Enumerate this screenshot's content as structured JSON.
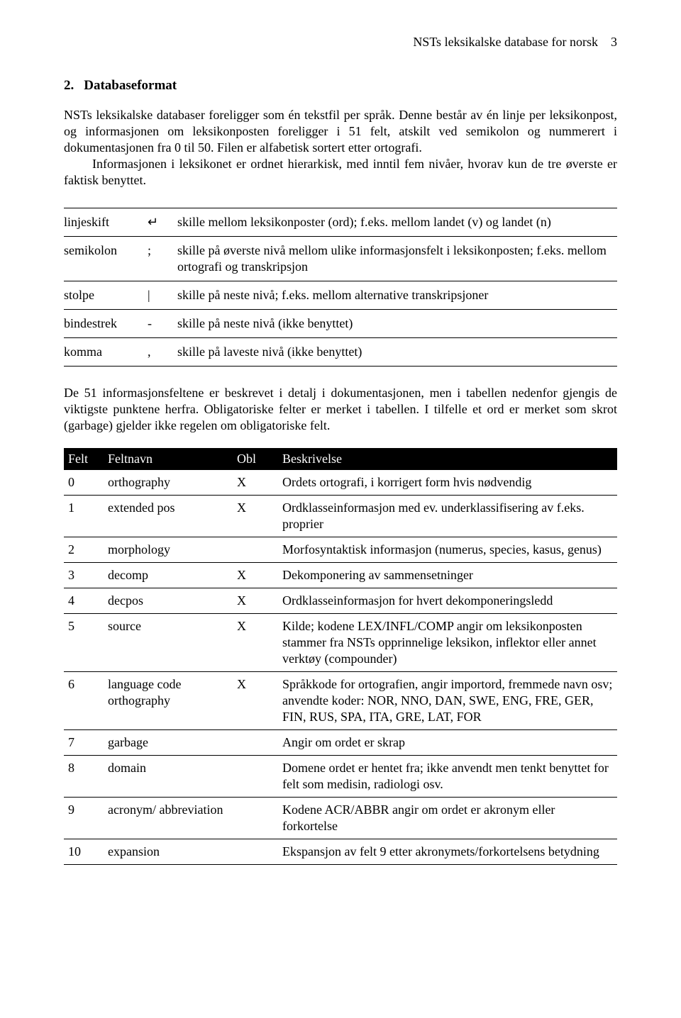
{
  "header": {
    "running": "NSTs leksikalske database for norsk",
    "page": "3"
  },
  "section": {
    "number": "2.",
    "title": "Databaseformat"
  },
  "paragraphs": {
    "p1": "NSTs leksikalske databaser foreligger som én tekstfil per språk. Denne består av én linje per leksikonpost, og informasjonen om leksikonposten foreligger i 51 felt, atskilt ved semikolon og nummerert i dokumentasjonen fra 0 til 50. Filen er alfabetisk sortert etter ortografi.",
    "p2": "Informasjonen i leksikonet er ordnet hierarkisk, med inntil fem nivåer, hvorav kun de tre øverste er faktisk benyttet.",
    "p3": "De 51 informasjonsfeltene er beskrevet i detalj i dokumentasjonen, men i tabellen nedenfor gjengis de viktigste punktene herfra. Obligatoriske felter er merket i tabellen. I tilfelle et ord er merket som skrot (garbage) gjelder ikke regelen om obligatoriske felt."
  },
  "sep_table": {
    "rows": [
      {
        "name": "linjeskift",
        "sym": "↵",
        "desc": "skille mellom leksikonposter (ord); f.eks. mellom landet (v) og landet (n)"
      },
      {
        "name": "semikolon",
        "sym": ";",
        "desc": "skille på øverste nivå mellom ulike informasjonsfelt i leksikonposten; f.eks. mellom ortografi og transkripsjon"
      },
      {
        "name": "stolpe",
        "sym": "|",
        "desc": "skille på neste nivå; f.eks. mellom alternative transkripsjoner"
      },
      {
        "name": "bindestrek",
        "sym": "-",
        "desc": "skille på neste nivå (ikke benyttet)"
      },
      {
        "name": "komma",
        "sym": ",",
        "desc": "skille på laveste nivå (ikke benyttet)"
      }
    ]
  },
  "felt_table": {
    "headers": {
      "h1": "Felt",
      "h2": "Feltnavn",
      "h3": "Obl",
      "h4": "Beskrivelse"
    },
    "rows": [
      {
        "n": "0",
        "name": "orthography",
        "obl": "X",
        "desc": "Ordets ortografi, i korrigert form hvis nødvendig"
      },
      {
        "n": "1",
        "name": "extended pos",
        "obl": "X",
        "desc": "Ordklasseinformasjon med ev. underklassifisering av f.eks. proprier"
      },
      {
        "n": "2",
        "name": "morphology",
        "obl": "",
        "desc": "Morfosyntaktisk informasjon (numerus, species, kasus, genus)"
      },
      {
        "n": "3",
        "name": "decomp",
        "obl": "X",
        "desc": "Dekomponering av sammensetninger"
      },
      {
        "n": "4",
        "name": "decpos",
        "obl": "X",
        "desc": "Ordklasseinformasjon for hvert dekomponeringsledd"
      },
      {
        "n": "5",
        "name": "source",
        "obl": "X",
        "desc": "Kilde; kodene LEX/INFL/COMP angir om leksikonposten stammer fra NSTs opprinnelige leksikon, inflektor eller annet verktøy (compounder)"
      },
      {
        "n": "6",
        "name": "language code orthography",
        "obl": "X",
        "desc": "Språkkode for ortografien, angir importord, fremmede navn osv; anvendte koder: NOR, NNO, DAN, SWE, ENG, FRE, GER, FIN, RUS, SPA, ITA, GRE, LAT, FOR"
      },
      {
        "n": "7",
        "name": "garbage",
        "obl": "",
        "desc": "Angir om ordet er skrap"
      },
      {
        "n": "8",
        "name": "domain",
        "obl": "",
        "desc": "Domene ordet er hentet fra; ikke anvendt men tenkt benyttet for felt som medisin, radiologi osv."
      },
      {
        "n": "9",
        "name": "acronym/ abbreviation",
        "obl": "",
        "desc": "Kodene ACR/ABBR angir om ordet er akronym eller forkortelse"
      },
      {
        "n": "10",
        "name": "expansion",
        "obl": "",
        "desc": "Ekspansjon av felt 9 etter akronymets/forkortelsens betydning"
      }
    ]
  }
}
